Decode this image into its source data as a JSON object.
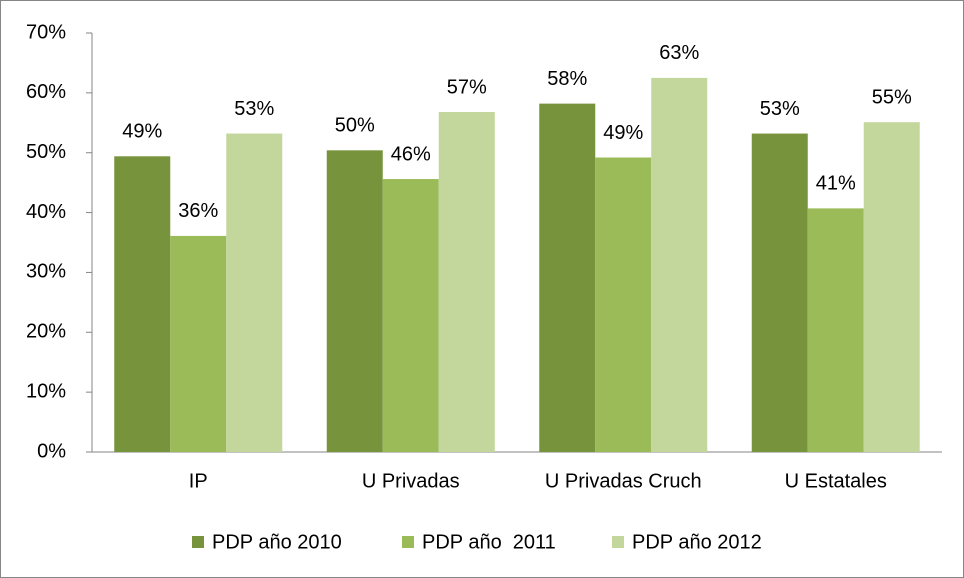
{
  "chart_data": {
    "type": "bar",
    "categories": [
      "IP",
      "U Privadas",
      "U Privadas Cruch",
      "U Estatales"
    ],
    "series": [
      {
        "name": "PDP año 2010",
        "color": "#77933c",
        "values": [
          49.4,
          50.4,
          58.2,
          53.2
        ],
        "value_labels": [
          "49%",
          "50%",
          "58%",
          "53%"
        ]
      },
      {
        "name": "PDP año  2011",
        "color": "#9bbb59",
        "values": [
          36.1,
          45.6,
          49.2,
          40.7
        ],
        "value_labels": [
          "36%",
          "46%",
          "49%",
          "41%"
        ]
      },
      {
        "name": "PDP año 2012",
        "color": "#c3d69b",
        "values": [
          53.2,
          56.8,
          62.5,
          55.1
        ],
        "value_labels": [
          "53%",
          "57%",
          "63%",
          "55%"
        ]
      }
    ],
    "ylim": [
      0,
      70
    ],
    "yticks": [
      {
        "value": 0,
        "label": "0%"
      },
      {
        "value": 10,
        "label": "10%"
      },
      {
        "value": 20,
        "label": "20%"
      },
      {
        "value": 30,
        "label": "30%"
      },
      {
        "value": 40,
        "label": "40%"
      },
      {
        "value": 50,
        "label": "50%"
      },
      {
        "value": 60,
        "label": "60%"
      },
      {
        "value": 70,
        "label": "70%"
      }
    ],
    "legend": "bottom"
  }
}
